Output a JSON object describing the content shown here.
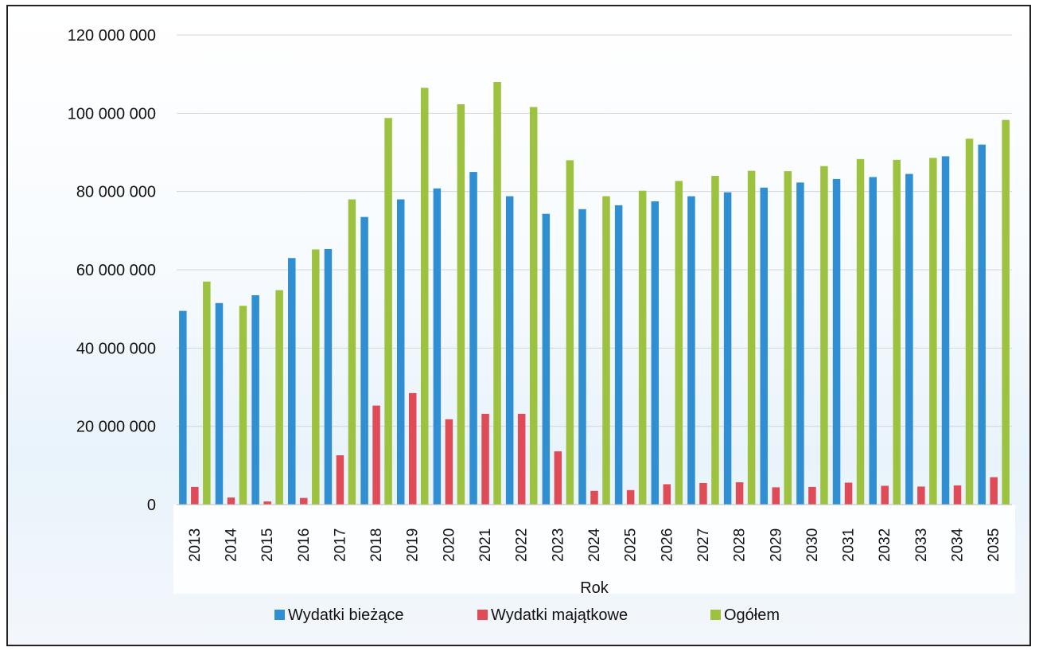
{
  "chart_data": {
    "type": "bar",
    "title": "",
    "xlabel": "Rok",
    "ylabel": "",
    "ylim": [
      0,
      120000000
    ],
    "yticks": [
      0,
      20000000,
      40000000,
      60000000,
      80000000,
      100000000,
      120000000
    ],
    "ytick_labels": [
      "0",
      "20 000 000",
      "40 000 000",
      "60 000 000",
      "80 000 000",
      "100 000 000",
      "120 000 000"
    ],
    "grid": true,
    "legend_position": "bottom",
    "categories": [
      "2013",
      "2014",
      "2015",
      "2016",
      "2017",
      "2018",
      "2019",
      "2020",
      "2021",
      "2022",
      "2023",
      "2024",
      "2025",
      "2026",
      "2027",
      "2028",
      "2029",
      "2030",
      "2031",
      "2032",
      "2033",
      "2034",
      "2035"
    ],
    "series": [
      {
        "name": "Wydatki bieżące",
        "color": "#2f8fd2",
        "values": [
          49500000,
          51500000,
          53500000,
          63000000,
          65300000,
          73500000,
          78000000,
          80800000,
          85000000,
          78800000,
          74300000,
          75500000,
          76500000,
          77500000,
          78800000,
          79800000,
          81000000,
          82300000,
          83200000,
          83700000,
          84500000,
          89000000,
          92000000
        ]
      },
      {
        "name": "Wydatki majątkowe",
        "color": "#df4b57",
        "values": [
          4500000,
          1800000,
          800000,
          1700000,
          12600000,
          25300000,
          28500000,
          21800000,
          23200000,
          23200000,
          13600000,
          3500000,
          3700000,
          5200000,
          5500000,
          5700000,
          4400000,
          4500000,
          5600000,
          4800000,
          4600000,
          4900000,
          7000000
        ]
      },
      {
        "name": "Ogółem",
        "color": "#9dc23f",
        "values": [
          57000000,
          50800000,
          54800000,
          65200000,
          78000000,
          98800000,
          106500000,
          102300000,
          108000000,
          101600000,
          88000000,
          78800000,
          80200000,
          82700000,
          84000000,
          85300000,
          85200000,
          86500000,
          88300000,
          88100000,
          88600000,
          93500000,
          98300000
        ]
      }
    ]
  }
}
